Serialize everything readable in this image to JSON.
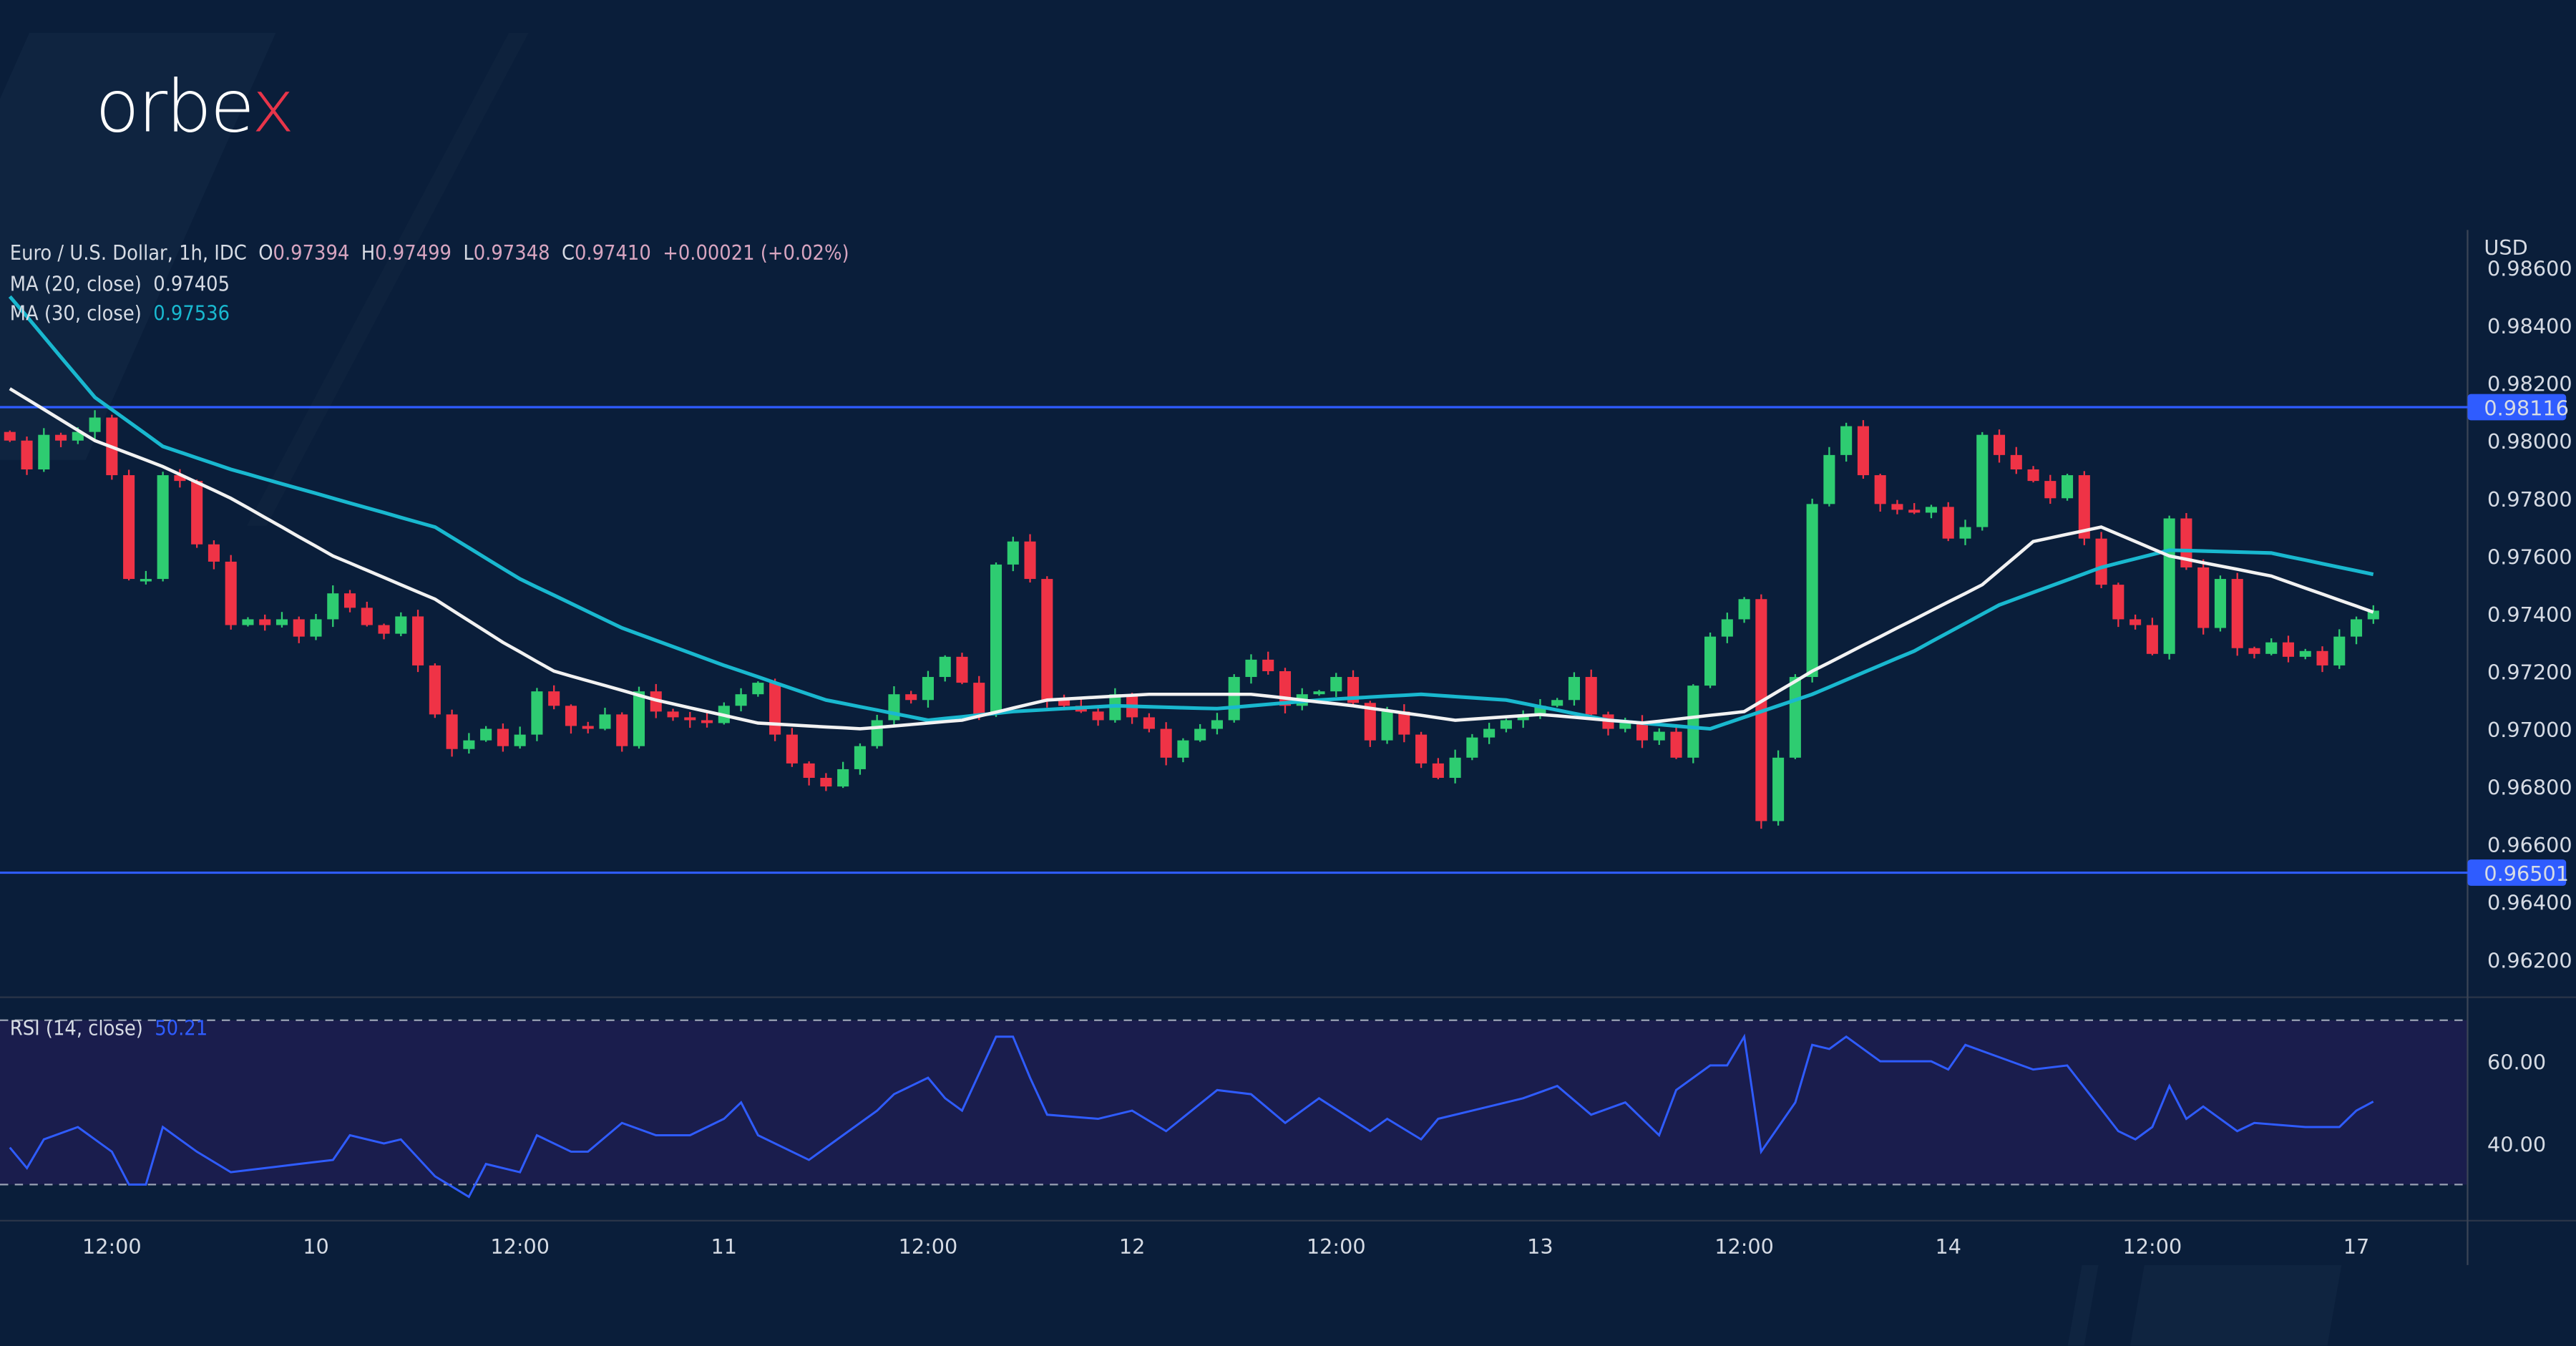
{
  "brand": {
    "logo_text": "orbex"
  },
  "legend": {
    "symbol": "Euro / U.S. Dollar, 1h, IDC",
    "o_label": "O",
    "o": "0.97394",
    "h_label": "H",
    "h": "0.97499",
    "l_label": "L",
    "l": "0.97348",
    "c_label": "C",
    "c": "0.97410",
    "change": "+0.00021 (+0.02%)",
    "ma20_label": "MA (20, close)",
    "ma20_value": "0.97405",
    "ma30_label": "MA (30, close)",
    "ma30_value": "0.97536",
    "rsi_label": "RSI (14, close)",
    "rsi_value": "50.21"
  },
  "colors": {
    "up": "#2ecc71",
    "down": "#ef3346",
    "ma20": "#f2f2f2",
    "ma30": "#19b8cf",
    "hline": "#2f5cff",
    "rsi": "#2f5cff",
    "rsi_band": "#1a1d4d",
    "bg": "#0a1e3a"
  },
  "chart_data": {
    "type": "candlestick",
    "currency": "USD",
    "ylim": [
      0.961,
      0.986
    ],
    "y_ticks": [
      "0.98600",
      "0.98400",
      "0.98200",
      "0.98000",
      "0.97800",
      "0.97600",
      "0.97400",
      "0.97200",
      "0.97000",
      "0.96800",
      "0.96600",
      "0.96400",
      "0.96200"
    ],
    "x_ticks": [
      {
        "index": 6,
        "label": "12:00"
      },
      {
        "index": 18,
        "label": "10"
      },
      {
        "index": 30,
        "label": "12:00"
      },
      {
        "index": 42,
        "label": "11"
      },
      {
        "index": 54,
        "label": "12:00"
      },
      {
        "index": 66,
        "label": "12"
      },
      {
        "index": 78,
        "label": "12:00"
      },
      {
        "index": 90,
        "label": "13"
      },
      {
        "index": 102,
        "label": "12:00"
      },
      {
        "index": 114,
        "label": "14"
      },
      {
        "index": 126,
        "label": "12:00"
      },
      {
        "index": 138,
        "label": "17"
      }
    ],
    "closes": [
      0.98,
      0.979,
      0.9802,
      0.98,
      0.9803,
      0.9808,
      0.9788,
      0.9752,
      0.9752,
      0.9788,
      0.9786,
      0.9764,
      0.9758,
      0.9736,
      0.9738,
      0.9736,
      0.9738,
      0.9732,
      0.9738,
      0.9747,
      0.9742,
      0.9736,
      0.9733,
      0.9739,
      0.9722,
      0.9705,
      0.9693,
      0.9696,
      0.97,
      0.9694,
      0.9698,
      0.9713,
      0.9708,
      0.9701,
      0.97,
      0.9705,
      0.9694,
      0.9713,
      0.9706,
      0.9704,
      0.9703,
      0.9702,
      0.9708,
      0.9712,
      0.9716,
      0.9698,
      0.9688,
      0.9683,
      0.968,
      0.9686,
      0.9694,
      0.9703,
      0.9712,
      0.971,
      0.9718,
      0.9725,
      0.9716,
      0.9705,
      0.9757,
      0.9765,
      0.9752,
      0.971,
      0.9708,
      0.9706,
      0.9703,
      0.9712,
      0.9704,
      0.97,
      0.969,
      0.9696,
      0.97,
      0.9703,
      0.9718,
      0.9724,
      0.972,
      0.9708,
      0.9712,
      0.9713,
      0.9718,
      0.9709,
      0.9696,
      0.9706,
      0.9698,
      0.9688,
      0.9683,
      0.969,
      0.9697,
      0.97,
      0.9703,
      0.9705,
      0.9708,
      0.971,
      0.9718,
      0.9705,
      0.97,
      0.9702,
      0.9696,
      0.9699,
      0.969,
      0.9715,
      0.9732,
      0.9738,
      0.9745,
      0.9668,
      0.969,
      0.9718,
      0.9778,
      0.9795,
      0.9805,
      0.9788,
      0.9778,
      0.9776,
      0.9775,
      0.9777,
      0.9766,
      0.977,
      0.9802,
      0.9795,
      0.979,
      0.9786,
      0.978,
      0.9788,
      0.9766,
      0.975,
      0.9738,
      0.9736,
      0.9726,
      0.9773,
      0.9756,
      0.9735,
      0.9752,
      0.9728,
      0.9726,
      0.973,
      0.9725,
      0.9727,
      0.9722,
      0.9732,
      0.9738,
      0.9741
    ],
    "ma20": [
      [
        0,
        0.9818
      ],
      [
        5,
        0.98
      ],
      [
        9,
        0.9791
      ],
      [
        13,
        0.978
      ],
      [
        19,
        0.976
      ],
      [
        25,
        0.9745
      ],
      [
        29,
        0.973
      ],
      [
        32,
        0.972
      ],
      [
        38,
        0.971
      ],
      [
        44,
        0.9702
      ],
      [
        50,
        0.97
      ],
      [
        56,
        0.9703
      ],
      [
        61,
        0.971
      ],
      [
        67,
        0.9712
      ],
      [
        73,
        0.9712
      ],
      [
        79,
        0.9708
      ],
      [
        85,
        0.9703
      ],
      [
        90,
        0.9705
      ],
      [
        96,
        0.9702
      ],
      [
        102,
        0.9706
      ],
      [
        106,
        0.972
      ],
      [
        112,
        0.9738
      ],
      [
        116,
        0.975
      ],
      [
        119,
        0.9765
      ],
      [
        123,
        0.977
      ],
      [
        127,
        0.976
      ],
      [
        133,
        0.9753
      ],
      [
        139,
        0.97405
      ]
    ],
    "ma30": [
      [
        0,
        0.985
      ],
      [
        5,
        0.9815
      ],
      [
        9,
        0.9798
      ],
      [
        13,
        0.979
      ],
      [
        19,
        0.978
      ],
      [
        25,
        0.977
      ],
      [
        30,
        0.9752
      ],
      [
        36,
        0.9735
      ],
      [
        42,
        0.9722
      ],
      [
        48,
        0.971
      ],
      [
        54,
        0.9703
      ],
      [
        59,
        0.9706
      ],
      [
        65,
        0.9708
      ],
      [
        71,
        0.9707
      ],
      [
        77,
        0.971
      ],
      [
        83,
        0.9712
      ],
      [
        88,
        0.971
      ],
      [
        94,
        0.9703
      ],
      [
        100,
        0.97
      ],
      [
        106,
        0.9712
      ],
      [
        112,
        0.9727
      ],
      [
        117,
        0.9743
      ],
      [
        123,
        0.9756
      ],
      [
        127,
        0.9762
      ],
      [
        133,
        0.9761
      ],
      [
        139,
        0.97536
      ]
    ],
    "horizontal_lines": [
      {
        "price": 0.98116,
        "label": "0.98116"
      },
      {
        "price": 0.96501,
        "label": "0.96501"
      }
    ],
    "rsi": {
      "ylim": [
        24,
        76
      ],
      "levels": [
        70,
        30
      ],
      "y_ticks": [
        "60.00",
        "40.00"
      ],
      "points": [
        [
          0,
          39
        ],
        [
          1,
          34
        ],
        [
          2,
          41
        ],
        [
          4,
          44
        ],
        [
          6,
          38
        ],
        [
          7,
          30
        ],
        [
          8,
          30
        ],
        [
          9,
          44
        ],
        [
          11,
          38
        ],
        [
          13,
          33
        ],
        [
          15,
          34
        ],
        [
          17,
          35
        ],
        [
          19,
          36
        ],
        [
          20,
          42
        ],
        [
          22,
          40
        ],
        [
          23,
          41
        ],
        [
          25,
          32
        ],
        [
          27,
          27
        ],
        [
          28,
          35
        ],
        [
          30,
          33
        ],
        [
          31,
          42
        ],
        [
          33,
          38
        ],
        [
          34,
          38
        ],
        [
          36,
          45
        ],
        [
          38,
          42
        ],
        [
          40,
          42
        ],
        [
          42,
          46
        ],
        [
          43,
          50
        ],
        [
          44,
          42
        ],
        [
          47,
          36
        ],
        [
          49,
          42
        ],
        [
          51,
          48
        ],
        [
          52,
          52
        ],
        [
          54,
          56
        ],
        [
          55,
          51
        ],
        [
          56,
          48
        ],
        [
          58,
          66
        ],
        [
          59,
          66
        ],
        [
          60,
          56
        ],
        [
          61,
          47
        ],
        [
          64,
          46
        ],
        [
          66,
          48
        ],
        [
          68,
          43
        ],
        [
          71,
          53
        ],
        [
          73,
          52
        ],
        [
          75,
          45
        ],
        [
          77,
          51
        ],
        [
          80,
          43
        ],
        [
          81,
          46
        ],
        [
          83,
          41
        ],
        [
          84,
          46
        ],
        [
          86,
          48
        ],
        [
          89,
          51
        ],
        [
          91,
          54
        ],
        [
          93,
          47
        ],
        [
          95,
          50
        ],
        [
          97,
          42
        ],
        [
          98,
          53
        ],
        [
          100,
          59
        ],
        [
          101,
          59
        ],
        [
          102,
          66
        ],
        [
          103,
          38
        ],
        [
          105,
          50
        ],
        [
          106,
          64
        ],
        [
          107,
          63
        ],
        [
          108,
          66
        ],
        [
          110,
          60
        ],
        [
          113,
          60
        ],
        [
          114,
          58
        ],
        [
          115,
          64
        ],
        [
          119,
          58
        ],
        [
          121,
          59
        ],
        [
          124,
          43
        ],
        [
          125,
          41
        ],
        [
          126,
          44
        ],
        [
          127,
          54
        ],
        [
          128,
          46
        ],
        [
          129,
          49
        ],
        [
          131,
          43
        ],
        [
          132,
          45
        ],
        [
          135,
          44
        ],
        [
          137,
          44
        ],
        [
          138,
          48
        ],
        [
          139,
          50.21
        ]
      ]
    }
  }
}
